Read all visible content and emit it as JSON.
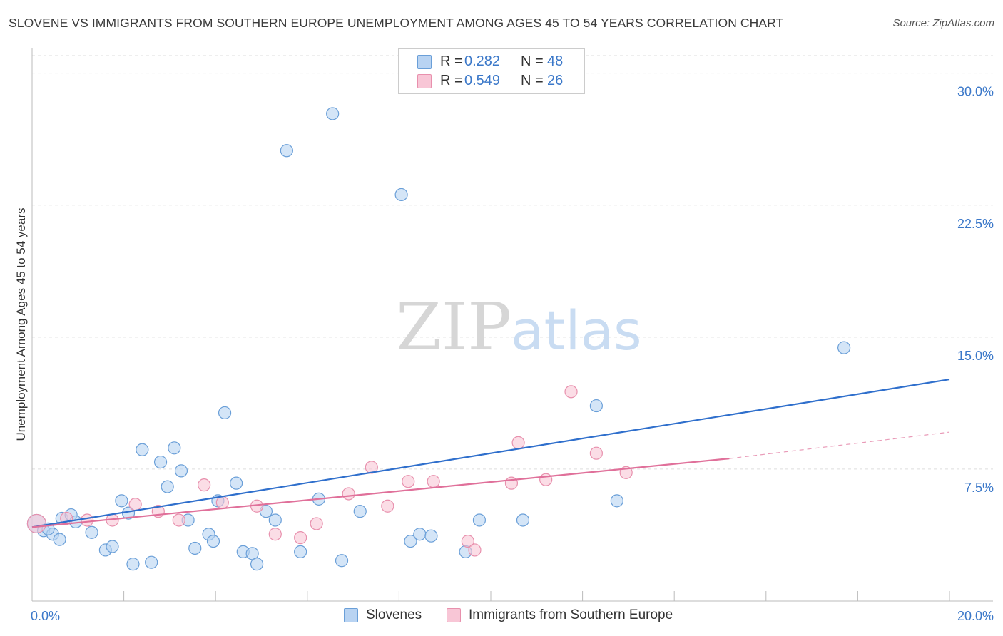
{
  "title": "SLOVENE VS IMMIGRANTS FROM SOUTHERN EUROPE UNEMPLOYMENT AMONG AGES 45 TO 54 YEARS CORRELATION CHART",
  "source": "Source: ZipAtlas.com",
  "watermark": {
    "zip": "ZIP",
    "atlas": "atlas"
  },
  "legend_top": [
    {
      "r_label": "R =",
      "r_value": "0.282",
      "n_label": "N =",
      "n_value": "48"
    },
    {
      "r_label": "R =",
      "r_value": "0.549",
      "n_label": "N =",
      "n_value": "26"
    }
  ],
  "colors": {
    "slovenes_fill": "#b8d3f2",
    "slovenes_stroke": "#6a9fd8",
    "slovenes_line": "#2f6fcc",
    "immigrants_fill": "#f8c6d6",
    "immigrants_stroke": "#e890ad",
    "immigrants_line": "#e0709a",
    "axis_text": "#3b78c9",
    "grid": "#dddddd"
  },
  "chart_data": {
    "type": "scatter",
    "title": "SLOVENE VS IMMIGRANTS FROM SOUTHERN EUROPE UNEMPLOYMENT AMONG AGES 45 TO 54 YEARS CORRELATION CHART",
    "xlabel": "",
    "ylabel": "Unemployment Among Ages 45 to 54 years",
    "xlim": [
      0,
      20
    ],
    "ylim": [
      0,
      31
    ],
    "x_tick_labels": [
      "0.0%",
      "20.0%"
    ],
    "y_ticks": [
      7.5,
      15,
      22.5,
      30
    ],
    "y_tick_labels": [
      "7.5%",
      "15.0%",
      "22.5%",
      "30.0%"
    ],
    "grid": true,
    "legend_position": "bottom",
    "series": [
      {
        "name": "Slovenes",
        "r": 0.282,
        "n": 48,
        "trend": {
          "x": [
            0,
            20
          ],
          "y": [
            4.2,
            12.6
          ]
        },
        "points": [
          [
            0.1,
            4.4
          ],
          [
            0.25,
            4.0
          ],
          [
            0.45,
            3.8
          ],
          [
            0.6,
            3.5
          ],
          [
            0.65,
            4.7
          ],
          [
            0.85,
            4.9
          ],
          [
            0.95,
            4.5
          ],
          [
            1.3,
            3.9
          ],
          [
            1.6,
            2.9
          ],
          [
            1.75,
            3.1
          ],
          [
            1.95,
            5.7
          ],
          [
            2.1,
            5.0
          ],
          [
            2.2,
            2.1
          ],
          [
            2.4,
            8.6
          ],
          [
            2.6,
            2.2
          ],
          [
            2.8,
            7.9
          ],
          [
            2.95,
            6.5
          ],
          [
            3.1,
            8.7
          ],
          [
            3.25,
            7.4
          ],
          [
            3.4,
            4.6
          ],
          [
            3.55,
            3.0
          ],
          [
            3.85,
            3.8
          ],
          [
            3.95,
            3.4
          ],
          [
            4.05,
            5.7
          ],
          [
            4.2,
            10.7
          ],
          [
            4.45,
            6.7
          ],
          [
            4.6,
            2.8
          ],
          [
            4.8,
            2.7
          ],
          [
            4.9,
            2.1
          ],
          [
            5.1,
            5.1
          ],
          [
            5.3,
            4.6
          ],
          [
            5.55,
            25.6
          ],
          [
            5.85,
            2.8
          ],
          [
            6.25,
            5.8
          ],
          [
            6.55,
            27.7
          ],
          [
            6.75,
            2.3
          ],
          [
            7.15,
            5.1
          ],
          [
            8.05,
            23.1
          ],
          [
            8.25,
            3.4
          ],
          [
            8.45,
            3.8
          ],
          [
            8.7,
            3.7
          ],
          [
            9.45,
            2.8
          ],
          [
            9.75,
            4.6
          ],
          [
            10.7,
            4.6
          ],
          [
            12.3,
            11.1
          ],
          [
            12.75,
            5.7
          ],
          [
            17.7,
            14.4
          ],
          [
            0.35,
            4.1
          ]
        ]
      },
      {
        "name": "Immigrants from Southern Europe",
        "r": 0.549,
        "n": 26,
        "trend": {
          "x": [
            0,
            15.2
          ],
          "y": [
            4.2,
            8.1
          ]
        },
        "trend_dashed": {
          "x": [
            15.2,
            20
          ],
          "y": [
            8.1,
            9.6
          ]
        },
        "points": [
          [
            0.1,
            4.4
          ],
          [
            0.75,
            4.7
          ],
          [
            1.2,
            4.6
          ],
          [
            1.75,
            4.6
          ],
          [
            2.25,
            5.5
          ],
          [
            2.75,
            5.1
          ],
          [
            3.2,
            4.6
          ],
          [
            3.75,
            6.6
          ],
          [
            4.15,
            5.6
          ],
          [
            4.9,
            5.4
          ],
          [
            5.3,
            3.8
          ],
          [
            5.85,
            3.6
          ],
          [
            6.2,
            4.4
          ],
          [
            6.9,
            6.1
          ],
          [
            7.4,
            7.6
          ],
          [
            7.75,
            5.4
          ],
          [
            8.2,
            6.8
          ],
          [
            8.75,
            6.8
          ],
          [
            9.5,
            3.4
          ],
          [
            9.65,
            2.9
          ],
          [
            10.45,
            6.7
          ],
          [
            10.6,
            9.0
          ],
          [
            11.2,
            6.9
          ],
          [
            11.75,
            11.9
          ],
          [
            12.3,
            8.4
          ],
          [
            12.95,
            7.3
          ]
        ]
      }
    ]
  },
  "legend_bottom": [
    "Slovenes",
    "Immigrants from Southern Europe"
  ]
}
